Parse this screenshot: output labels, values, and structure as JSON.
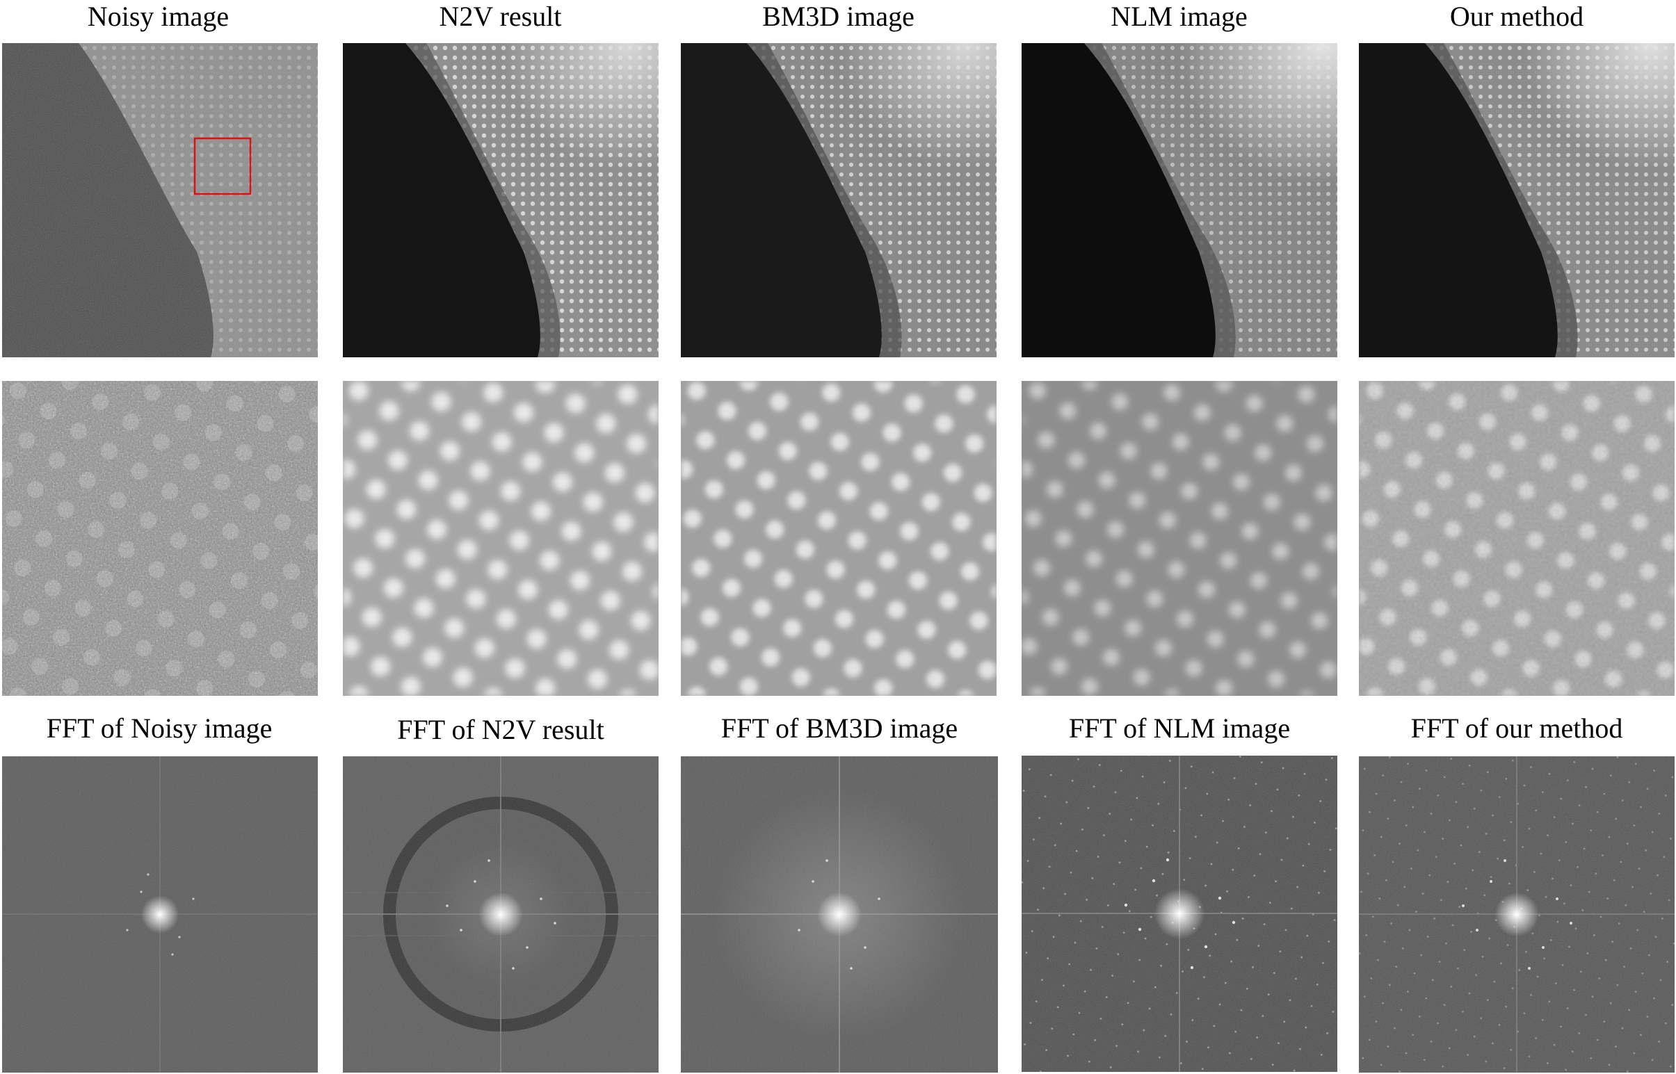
{
  "figure": {
    "top_titles": [
      "Noisy image",
      "N2V result",
      "BM3D image",
      "NLM image",
      "Our method"
    ],
    "fft_titles": [
      "FFT of Noisy image",
      "FFT of N2V result",
      "FFT of BM3D image",
      "FFT of NLM image",
      "FFT of our method"
    ],
    "rows": [
      {
        "name": "full-image-row",
        "panels": [
          "noisy",
          "n2v",
          "bm3d",
          "nlm",
          "ours"
        ]
      },
      {
        "name": "zoomed-crop-row",
        "panels": [
          "noisy",
          "n2v",
          "bm3d",
          "nlm",
          "ours"
        ]
      },
      {
        "name": "fft-row",
        "panels": [
          "noisy",
          "n2v",
          "bm3d",
          "nlm",
          "ours"
        ]
      }
    ],
    "roi_color": "#ff0000"
  }
}
